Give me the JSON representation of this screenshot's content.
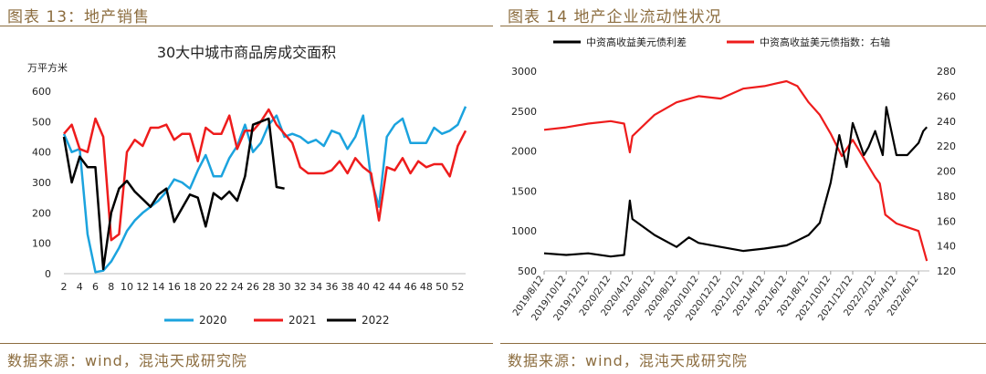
{
  "left": {
    "figure_title": "图表 13：地产销售",
    "source": "数据来源：wind，混沌天成研究院",
    "chart_data": {
      "type": "line",
      "title": "30大中城市商品房成交面积",
      "ylabel": "万平方米",
      "xlabel": "",
      "ylim": [
        0,
        600
      ],
      "yticks": [
        0,
        100,
        200,
        300,
        400,
        500,
        600
      ],
      "xlim": [
        2,
        53
      ],
      "xticks": [
        "2",
        "4",
        "6",
        "8",
        "10",
        "12",
        "14",
        "16",
        "18",
        "20",
        "22",
        "24",
        "26",
        "28",
        "30",
        "32",
        "34",
        "36",
        "38",
        "40",
        "42",
        "44",
        "46",
        "48",
        "50",
        "52"
      ],
      "legend_position": "bottom",
      "colors": {
        "2020": "#1ba3de",
        "2021": "#ee1c1c",
        "2022": "#000000"
      },
      "series": [
        {
          "name": "2020",
          "x": [
            2,
            3,
            4,
            5,
            6,
            7,
            8,
            9,
            10,
            11,
            12,
            13,
            14,
            15,
            16,
            17,
            18,
            19,
            20,
            21,
            22,
            23,
            24,
            25,
            26,
            27,
            28,
            29,
            30,
            31,
            32,
            33,
            34,
            35,
            36,
            37,
            38,
            39,
            40,
            41,
            42,
            43,
            44,
            45,
            46,
            47,
            48,
            49,
            50,
            51,
            52,
            53
          ],
          "values": [
            460,
            400,
            410,
            130,
            5,
            10,
            40,
            85,
            140,
            175,
            200,
            220,
            240,
            270,
            310,
            300,
            280,
            340,
            390,
            320,
            320,
            380,
            420,
            490,
            400,
            430,
            490,
            520,
            450,
            460,
            450,
            430,
            440,
            420,
            470,
            460,
            410,
            450,
            520,
            310,
            220,
            450,
            490,
            510,
            430,
            430,
            430,
            480,
            460,
            470,
            490,
            550
          ]
        },
        {
          "name": "2021",
          "x": [
            2,
            3,
            4,
            5,
            6,
            7,
            8,
            9,
            10,
            11,
            12,
            13,
            14,
            15,
            16,
            17,
            18,
            19,
            20,
            21,
            22,
            23,
            24,
            25,
            26,
            27,
            28,
            29,
            30,
            31,
            32,
            33,
            34,
            35,
            36,
            37,
            38,
            39,
            40,
            41,
            42,
            43,
            44,
            45,
            46,
            47,
            48,
            49,
            50,
            51,
            52,
            53
          ],
          "values": [
            460,
            490,
            410,
            400,
            510,
            450,
            110,
            130,
            400,
            440,
            420,
            480,
            480,
            490,
            440,
            460,
            460,
            370,
            480,
            460,
            460,
            520,
            410,
            470,
            470,
            500,
            540,
            490,
            460,
            430,
            350,
            330,
            330,
            330,
            340,
            370,
            330,
            380,
            350,
            330,
            175,
            350,
            340,
            380,
            330,
            370,
            350,
            360,
            360,
            320,
            420,
            470
          ]
        },
        {
          "name": "2022",
          "x": [
            2,
            3,
            4,
            5,
            6,
            7,
            8,
            9,
            10,
            11,
            12,
            13,
            14,
            15,
            16,
            17,
            18,
            19,
            20,
            21,
            22,
            23,
            24,
            25,
            26,
            27,
            28,
            29,
            30
          ],
          "values": [
            450,
            300,
            385,
            350,
            350,
            15,
            200,
            280,
            305,
            270,
            245,
            220,
            260,
            280,
            170,
            215,
            260,
            250,
            155,
            265,
            245,
            270,
            240,
            320,
            490,
            500,
            510,
            285,
            280
          ]
        }
      ]
    }
  },
  "right": {
    "figure_title": "图表 14 地产企业流动性状况",
    "source": "数据来源：wind，混沌天成研究院",
    "chart_data": {
      "type": "line",
      "title": "",
      "xlabel": "",
      "ylabel": "",
      "ylim_left": [
        500,
        3000
      ],
      "yticks_left": [
        500,
        1000,
        1500,
        2000,
        2500,
        3000
      ],
      "ylim_right": [
        120,
        280
      ],
      "yticks_right": [
        120,
        140,
        160,
        180,
        200,
        220,
        240,
        260,
        280
      ],
      "xticks": [
        "2019/8/12",
        "2019/10/12",
        "2019/12/12",
        "2020/2/12",
        "2020/4/12",
        "2020/6/12",
        "2020/8/12",
        "2020/10/12",
        "2020/12/12",
        "2021/2/12",
        "2021/4/12",
        "2021/6/12",
        "2021/8/12",
        "2021/10/12",
        "2021/12/12",
        "2022/2/12",
        "2022/4/12",
        "2022/6/12"
      ],
      "legend_position": "top",
      "colors": {
        "spread": "#000000",
        "index": "#ee1c1c"
      },
      "series": [
        {
          "name": "中资高收益美元债利差",
          "axis": "left",
          "x": [
            "2019/8/12",
            "2019/10/12",
            "2019/12/12",
            "2020/2/12",
            "2020/3/20",
            "2020/4/5",
            "2020/4/12",
            "2020/6/12",
            "2020/8/12",
            "2020/9/15",
            "2020/10/12",
            "2020/12/12",
            "2021/2/12",
            "2021/4/12",
            "2021/6/12",
            "2021/7/12",
            "2021/8/12",
            "2021/9/12",
            "2021/10/12",
            "2021/11/5",
            "2021/11/25",
            "2021/12/12",
            "2022/1/12",
            "2022/1/25",
            "2022/2/12",
            "2022/3/5",
            "2022/3/15",
            "2022/4/12",
            "2022/5/12",
            "2022/6/12",
            "2022/6/25",
            "2022/7/5"
          ],
          "values": [
            720,
            700,
            720,
            680,
            700,
            1380,
            1150,
            950,
            800,
            920,
            850,
            800,
            750,
            780,
            820,
            880,
            950,
            1100,
            1600,
            2200,
            1800,
            2350,
            1950,
            2050,
            2250,
            1950,
            2550,
            1950,
            1950,
            2100,
            2250,
            2300
          ]
        },
        {
          "name": "中资高收益美元债指数：右轴",
          "axis": "right",
          "x": [
            "2019/8/12",
            "2019/10/12",
            "2019/12/12",
            "2020/2/12",
            "2020/3/20",
            "2020/4/5",
            "2020/4/12",
            "2020/6/12",
            "2020/8/12",
            "2020/10/12",
            "2020/12/12",
            "2021/2/12",
            "2021/4/12",
            "2021/5/12",
            "2021/6/12",
            "2021/7/12",
            "2021/8/12",
            "2021/9/12",
            "2021/10/12",
            "2021/11/12",
            "2021/12/12",
            "2022/1/12",
            "2022/2/12",
            "2022/2/25",
            "2022/3/12",
            "2022/4/12",
            "2022/5/12",
            "2022/6/12",
            "2022/7/5"
          ],
          "values": [
            233,
            235,
            238,
            240,
            238,
            215,
            228,
            245,
            255,
            260,
            258,
            266,
            268,
            270,
            272,
            268,
            255,
            245,
            230,
            212,
            225,
            210,
            195,
            190,
            165,
            158,
            155,
            152,
            128
          ]
        }
      ]
    }
  }
}
